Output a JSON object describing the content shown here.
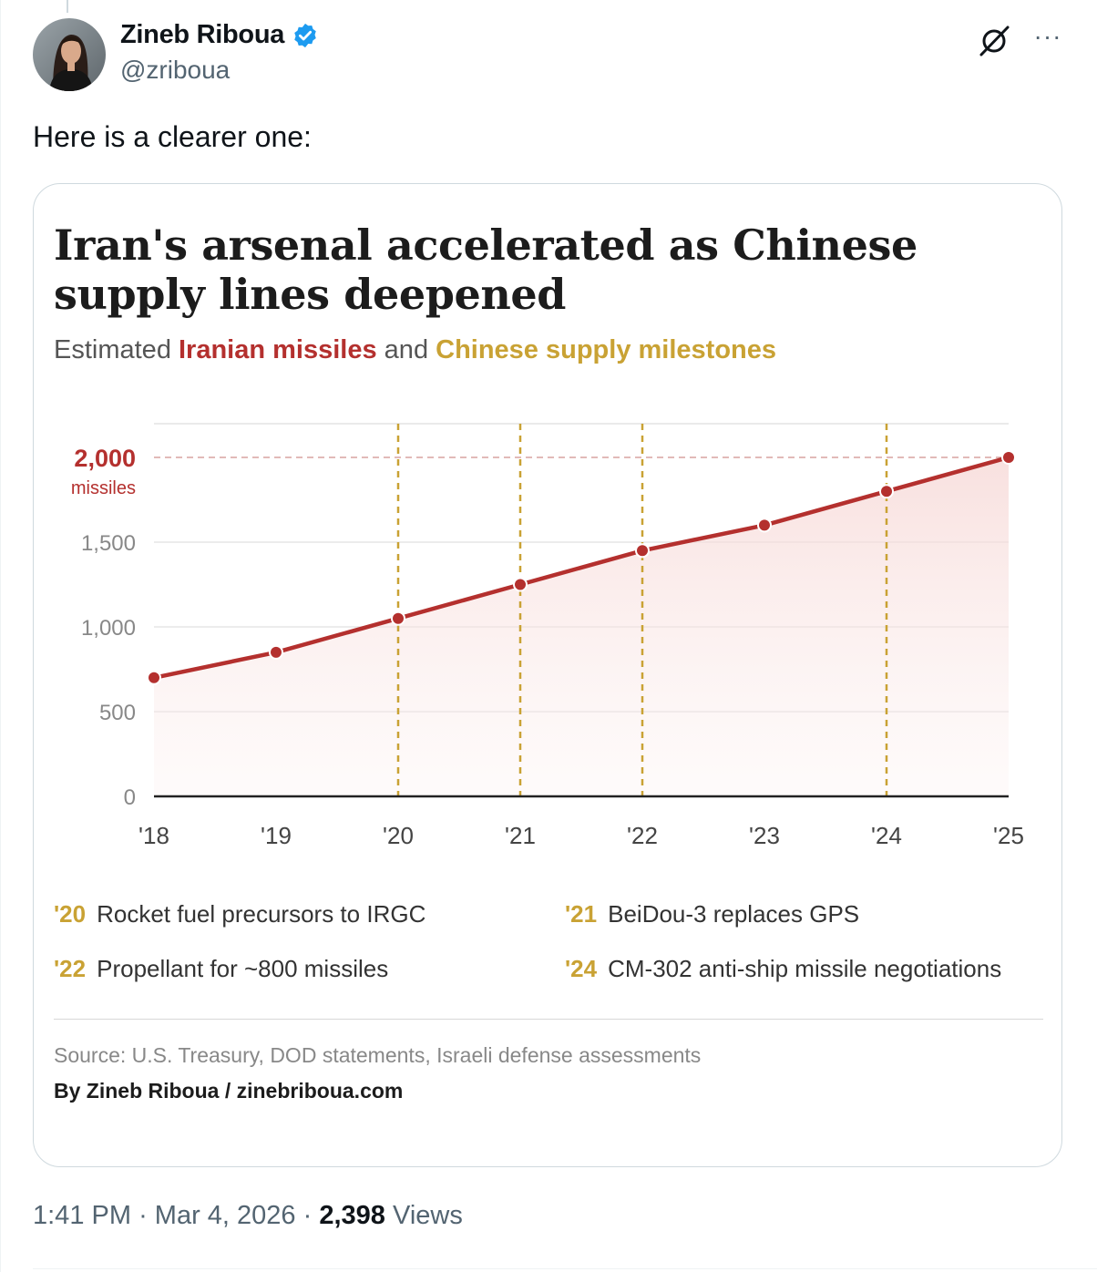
{
  "author": {
    "display_name": "Zineb Riboua",
    "handle": "@zriboua",
    "verified": true,
    "verified_color": "#1d9bf0"
  },
  "tweet": {
    "text": "Here is a clearer one:"
  },
  "actions": {
    "grok_icon": "grok-icon",
    "more_icon": "more-icon",
    "more_label": "···"
  },
  "meta": {
    "time": "1:41 PM",
    "sep1": "·",
    "date": "Mar 4, 2026",
    "sep2": "·",
    "views_count": "2,398",
    "views_label": "Views"
  },
  "card": {
    "title": "Iran's arsenal accelerated as Chinese supply lines deepened",
    "subtitle": {
      "prefix": "Estimated ",
      "red": "Iranian missiles",
      "mid": " and ",
      "gold": "Chinese supply milestones"
    },
    "milestones": [
      {
        "year": "'20",
        "text": "Rocket fuel precursors to IRGC"
      },
      {
        "year": "'21",
        "text": "BeiDou-3 replaces GPS"
      },
      {
        "year": "'22",
        "text": "Propellant for ~800 missiles"
      },
      {
        "year": "'24",
        "text": "CM-302 anti-ship missile negotiations"
      }
    ],
    "source": "Source: U.S. Treasury, DOD statements, Israeli defense assessments",
    "byline": "By Zineb Riboua / zinebriboua.com"
  },
  "chart_data": {
    "type": "line",
    "title": "Iran's arsenal accelerated as Chinese supply lines deepened",
    "subtitle": "Estimated Iranian missiles and Chinese supply milestones",
    "categories": [
      "'18",
      "'19",
      "'20",
      "'21",
      "'22",
      "'23",
      "'24",
      "'25"
    ],
    "series": [
      {
        "name": "Iranian missiles",
        "values": [
          700,
          850,
          1050,
          1250,
          1450,
          1600,
          1800,
          2000
        ],
        "color": "#b4302e"
      }
    ],
    "milestone_years": [
      "'20",
      "'21",
      "'22",
      "'24"
    ],
    "milestone_color": "#c9a234",
    "ylim": [
      0,
      2000
    ],
    "yticks": [
      {
        "value": 0,
        "label": "0"
      },
      {
        "value": 500,
        "label": "500"
      },
      {
        "value": 1000,
        "label": "1,000"
      },
      {
        "value": 1500,
        "label": "1,500"
      },
      {
        "value": 2000,
        "label": "2,000",
        "sublabel": "missiles",
        "highlight": true
      }
    ],
    "xlabel": "",
    "ylabel": "",
    "grid": true
  }
}
